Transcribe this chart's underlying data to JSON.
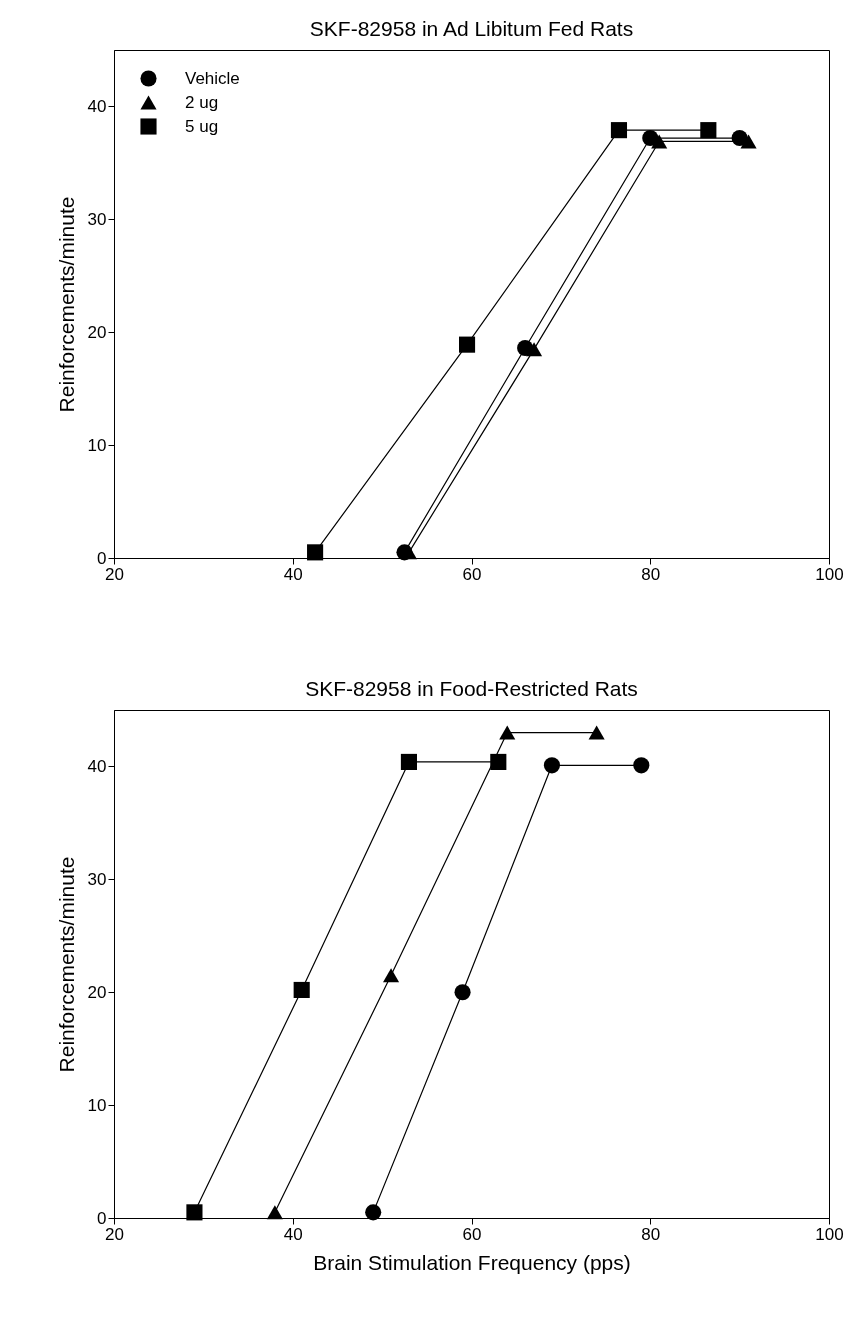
{
  "chart_data": [
    {
      "type": "line",
      "title": "SKF-82958 in Ad Libitum Fed Rats",
      "ylabel": "Reinforcements/minute",
      "xlim": [
        20,
        100
      ],
      "xticks": [
        20,
        40,
        60,
        80,
        100
      ],
      "ylim": [
        0,
        45
      ],
      "yticks": [
        0,
        10,
        20,
        30,
        40
      ],
      "grid": false,
      "legend": "top left",
      "line_style": "solid",
      "series": [
        {
          "name": "Vehicle",
          "color": "#000000",
          "marker": "circle",
          "x": [
            52.5,
            66,
            80,
            90
          ],
          "values": [
            0.5,
            18.6,
            37.2,
            37.2
          ]
        },
        {
          "name": "2 ug",
          "color": "#000000",
          "marker": "triangle",
          "x": [
            53,
            67,
            81,
            91
          ],
          "values": [
            0.5,
            18.5,
            36.9,
            36.9
          ]
        },
        {
          "name": "5 ug",
          "color": "#000000",
          "marker": "square",
          "x": [
            42.5,
            59.5,
            76.5,
            86.5
          ],
          "values": [
            0.5,
            18.9,
            37.9,
            37.9
          ]
        }
      ]
    },
    {
      "type": "line",
      "title": "SKF-82958 in Food-Restricted Rats",
      "xlabel": "Brain Stimulation Frequency (pps)",
      "ylabel": "Reinforcements/minute",
      "xlim": [
        20,
        100
      ],
      "xticks": [
        20,
        40,
        60,
        80,
        100
      ],
      "ylim": [
        0,
        45
      ],
      "yticks": [
        0,
        10,
        20,
        30,
        40
      ],
      "grid": false,
      "legend": false,
      "line_style": "solid",
      "series": [
        {
          "color": "#000000",
          "marker": "circle",
          "x": [
            49,
            59,
            69,
            79
          ],
          "values": [
            0.5,
            20,
            40.1,
            40.1
          ]
        },
        {
          "color": "#000000",
          "marker": "triangle",
          "x": [
            38,
            51,
            64,
            74
          ],
          "values": [
            0.5,
            21.5,
            43,
            43
          ]
        },
        {
          "color": "#000000",
          "marker": "square",
          "x": [
            29,
            41,
            53,
            63
          ],
          "values": [
            0.5,
            20.2,
            40.4,
            40.4
          ]
        }
      ]
    }
  ]
}
